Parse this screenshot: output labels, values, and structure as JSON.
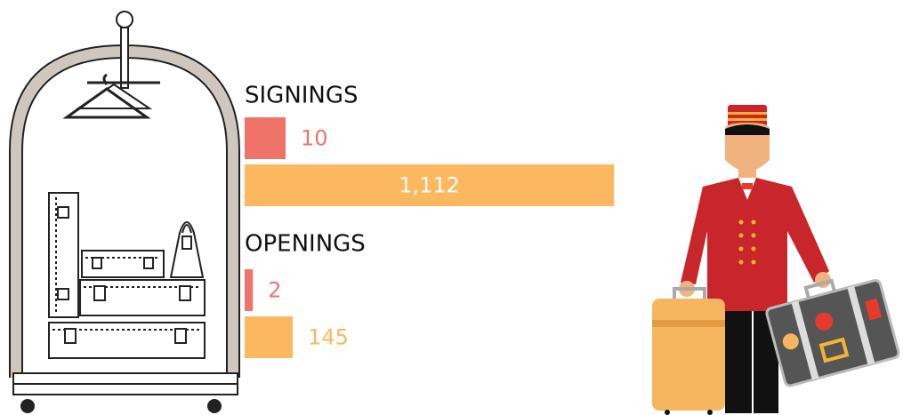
{
  "chart_data": {
    "type": "bar",
    "categories": [
      "SIGNINGS",
      "OPENINGS"
    ],
    "series": [
      {
        "color": "#f0736a",
        "values": [
          10,
          2
        ]
      },
      {
        "color": "#fbb861",
        "values": [
          1112,
          145
        ],
        "value_labels": [
          "1,112",
          "145"
        ]
      }
    ]
  }
}
